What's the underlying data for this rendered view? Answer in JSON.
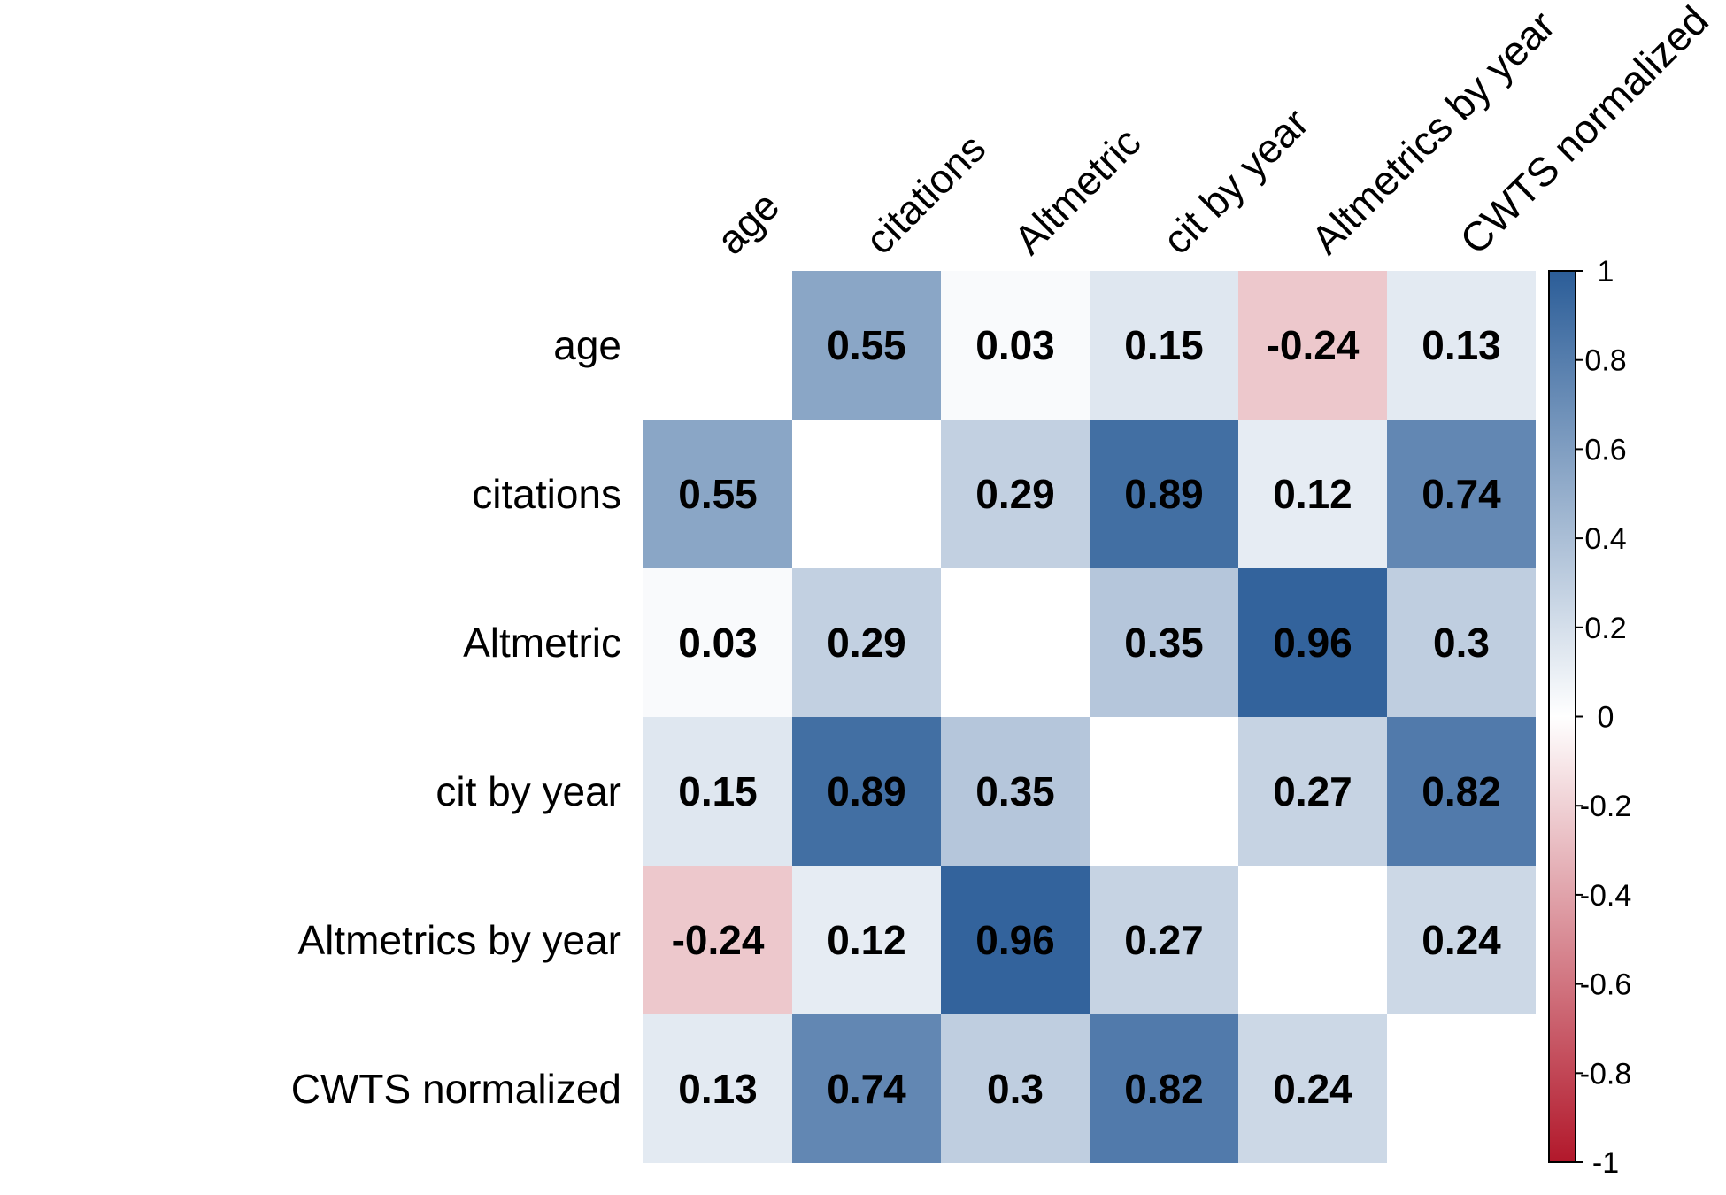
{
  "chart_data": {
    "type": "heatmap",
    "title": "",
    "variables": [
      "age",
      "citations",
      "Altmetric",
      "cit by year",
      "Altmetrics by year",
      "CWTS normalized"
    ],
    "matrix": [
      [
        null,
        0.55,
        0.03,
        0.15,
        -0.24,
        0.13
      ],
      [
        0.55,
        null,
        0.29,
        0.89,
        0.12,
        0.74
      ],
      [
        0.03,
        0.29,
        null,
        0.35,
        0.96,
        0.3
      ],
      [
        0.15,
        0.89,
        0.35,
        null,
        0.27,
        0.82
      ],
      [
        -0.24,
        0.12,
        0.96,
        0.27,
        null,
        0.24
      ],
      [
        0.13,
        0.74,
        0.3,
        0.82,
        0.24,
        null
      ]
    ],
    "color_scale": {
      "min": -1,
      "max": 1,
      "ticks": [
        "1",
        "0.8",
        "0.6",
        "0.4",
        "0.2",
        "0",
        "-0.2",
        "-0.4",
        "-0.6",
        "-0.8",
        "-1"
      ],
      "colors": {
        "negative": "#b2182b",
        "neutral": "#ffffff",
        "positive": "#2b5d98"
      }
    },
    "colorbar_position": "right",
    "diagonal_shown": false
  }
}
